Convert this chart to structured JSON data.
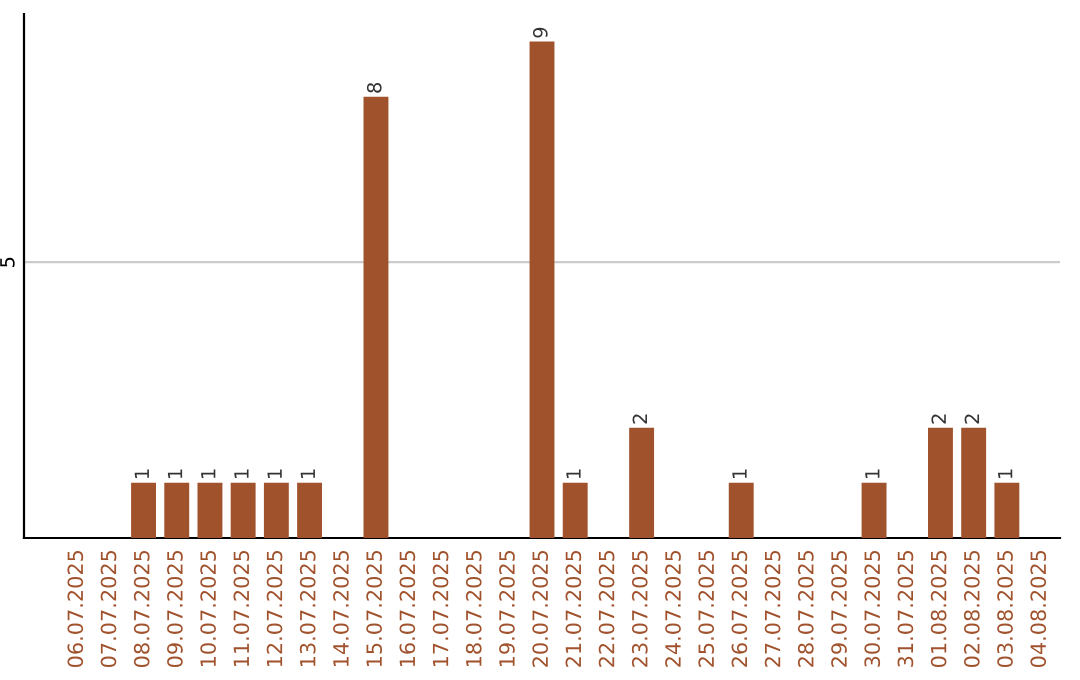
{
  "chart_data": {
    "type": "bar",
    "categories": [
      "06.07.2025",
      "07.07.2025",
      "08.07.2025",
      "09.07.2025",
      "10.07.2025",
      "11.07.2025",
      "12.07.2025",
      "13.07.2025",
      "14.07.2025",
      "15.07.2025",
      "16.07.2025",
      "17.07.2025",
      "18.07.2025",
      "19.07.2025",
      "20.07.2025",
      "21.07.2025",
      "22.07.2025",
      "23.07.2025",
      "24.07.2025",
      "25.07.2025",
      "26.07.2025",
      "27.07.2025",
      "28.07.2025",
      "29.07.2025",
      "30.07.2025",
      "31.07.2025",
      "01.08.2025",
      "02.08.2025",
      "03.08.2025",
      "04.08.2025"
    ],
    "values": [
      0,
      0,
      1,
      1,
      1,
      1,
      1,
      1,
      0,
      8,
      0,
      0,
      0,
      0,
      9,
      1,
      0,
      2,
      0,
      0,
      1,
      0,
      0,
      0,
      1,
      0,
      2,
      2,
      1,
      0
    ],
    "value_labels": [
      null,
      null,
      "1",
      "1",
      "1",
      "1",
      "1",
      "1",
      null,
      "8",
      null,
      null,
      null,
      null,
      "9",
      "1",
      null,
      "2",
      null,
      null,
      "1",
      null,
      null,
      null,
      "1",
      null,
      "2",
      "2",
      "1",
      null
    ],
    "color": "#a0522d",
    "ylim": [
      0,
      9.5
    ],
    "yticks": [
      5
    ],
    "grid": "y"
  }
}
